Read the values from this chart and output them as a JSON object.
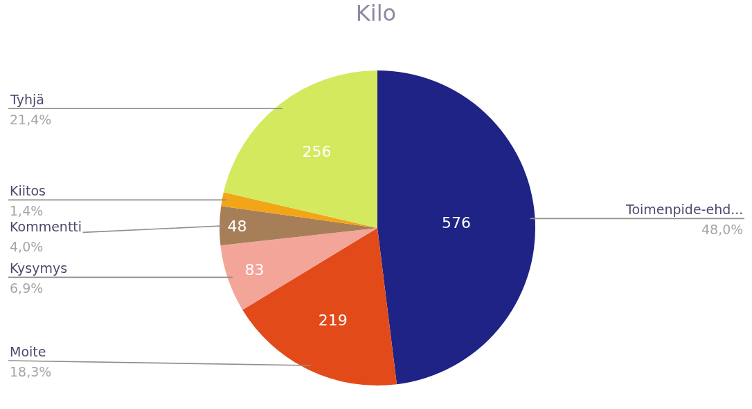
{
  "chart_data": {
    "type": "pie",
    "title": "Kilo",
    "categories": [
      "Toimenpide-ehd...",
      "Moite",
      "Kysymys",
      "Kommentti",
      "Kiitos",
      "Tyhjä"
    ],
    "values": [
      576,
      219,
      83,
      48,
      17,
      256
    ],
    "colors": [
      "#1e2385",
      "#e34a1a",
      "#f4a599",
      "#a67f59",
      "#f2a516",
      "#d4e95e"
    ],
    "value_labels": [
      "576",
      "219",
      "83",
      "48",
      null,
      "256"
    ],
    "annotations": [
      "48,0%",
      "18,3%",
      "6,9%",
      "4,0%",
      "1,4%",
      "21,4%"
    ]
  }
}
